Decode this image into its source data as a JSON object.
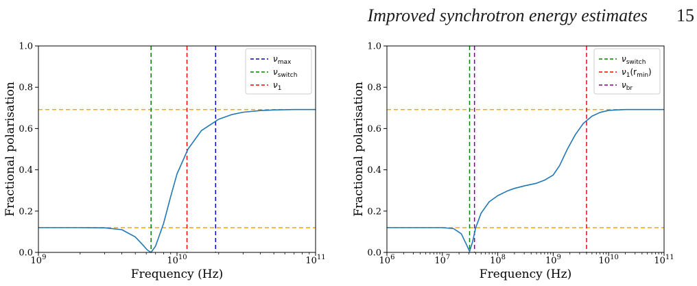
{
  "header": {
    "title": "Improved synchrotron energy estimates",
    "page_number": "15"
  },
  "colors": {
    "curve": "#1f77b4",
    "orange": "#ffa500",
    "green": "#008000",
    "red": "#ff0000",
    "blue": "#0000cc",
    "purple": "#800080"
  },
  "chart_data": [
    {
      "type": "line",
      "xscale": "log",
      "xlim": [
        1000000000.0,
        100000000000.0
      ],
      "ylim": [
        0.0,
        1.0
      ],
      "xlabel": "Frequency (Hz)",
      "ylabel": "Fractional polarisation",
      "x_major_ticks": [
        {
          "value": 1000000000.0,
          "base": "10",
          "exp": "9"
        },
        {
          "value": 10000000000.0,
          "base": "10",
          "exp": "10"
        },
        {
          "value": 100000000000.0,
          "base": "10",
          "exp": "11"
        }
      ],
      "y_ticks": [
        {
          "value": 0.0,
          "label": "0.0"
        },
        {
          "value": 0.2,
          "label": "0.2"
        },
        {
          "value": 0.4,
          "label": "0.4"
        },
        {
          "value": 0.6,
          "label": "0.6"
        },
        {
          "value": 0.8,
          "label": "0.8"
        },
        {
          "value": 1.0,
          "label": "1.0"
        }
      ],
      "curve": {
        "x": [
          1000000000.0,
          2000000000.0,
          3000000000.0,
          4000000000.0,
          5000000000.0,
          5600000000.0,
          6100000000.0,
          6500000000.0,
          7000000000.0,
          8000000000.0,
          9000000000.0,
          10000000000.0,
          12000000000.0,
          15000000000.0,
          20000000000.0,
          25000000000.0,
          30000000000.0,
          40000000000.0,
          50000000000.0,
          70000000000.0,
          100000000000.0
        ],
        "y": [
          0.12,
          0.12,
          0.119,
          0.11,
          0.075,
          0.04,
          0.012,
          0.0,
          0.03,
          0.14,
          0.27,
          0.38,
          0.5,
          0.59,
          0.645,
          0.668,
          0.679,
          0.687,
          0.69,
          0.692,
          0.692
        ]
      },
      "hlines": [
        {
          "y": 0.692,
          "color": "#ffa500"
        },
        {
          "y": 0.12,
          "color": "#ffa500"
        }
      ],
      "vlines": [
        {
          "x": 19000000000.0,
          "color": "#0000cc",
          "legend_base": "ν",
          "legend_sub": "max"
        },
        {
          "x": 6500000000.0,
          "color": "#008000",
          "legend_base": "ν",
          "legend_sub": "switch"
        },
        {
          "x": 11800000000.0,
          "color": "#ff0000",
          "legend_base": "ν",
          "legend_sub": "1"
        }
      ],
      "legend_position": "top-right"
    },
    {
      "type": "line",
      "xscale": "log",
      "xlim": [
        1000000.0,
        100000000000.0
      ],
      "ylim": [
        0.0,
        1.0
      ],
      "xlabel": "Frequency (Hz)",
      "ylabel": "Fractional polarisation",
      "x_major_ticks": [
        {
          "value": 1000000.0,
          "base": "10",
          "exp": "6"
        },
        {
          "value": 10000000.0,
          "base": "10",
          "exp": "7"
        },
        {
          "value": 100000000.0,
          "base": "10",
          "exp": "8"
        },
        {
          "value": 1000000000.0,
          "base": "10",
          "exp": "9"
        },
        {
          "value": 10000000000.0,
          "base": "10",
          "exp": "10"
        },
        {
          "value": 100000000000.0,
          "base": "10",
          "exp": "11"
        }
      ],
      "y_ticks": [
        {
          "value": 0.0,
          "label": "0.0"
        },
        {
          "value": 0.2,
          "label": "0.2"
        },
        {
          "value": 0.4,
          "label": "0.4"
        },
        {
          "value": 0.6,
          "label": "0.6"
        },
        {
          "value": 0.8,
          "label": "0.8"
        },
        {
          "value": 1.0,
          "label": "1.0"
        }
      ],
      "curve": {
        "x": [
          1000000.0,
          5000000.0,
          10000000.0,
          16000000.0,
          22000000.0,
          27000000.0,
          31000000.0,
          35000000.0,
          40000000.0,
          50000000.0,
          70000000.0,
          100000000.0,
          150000000.0,
          200000000.0,
          300000000.0,
          500000000.0,
          700000000.0,
          1000000000.0,
          1300000000.0,
          1800000000.0,
          2500000000.0,
          3500000000.0,
          5000000000.0,
          7000000000.0,
          10000000000.0,
          20000000000.0,
          100000000000.0
        ],
        "y": [
          0.12,
          0.12,
          0.12,
          0.115,
          0.09,
          0.04,
          0.005,
          0.05,
          0.12,
          0.19,
          0.245,
          0.275,
          0.298,
          0.31,
          0.322,
          0.335,
          0.35,
          0.375,
          0.42,
          0.5,
          0.57,
          0.625,
          0.66,
          0.678,
          0.688,
          0.692,
          0.692
        ]
      },
      "hlines": [
        {
          "y": 0.692,
          "color": "#ffa500"
        },
        {
          "y": 0.12,
          "color": "#ffa500"
        }
      ],
      "vlines": [
        {
          "x": 31000000.0,
          "color": "#008000",
          "legend_base": "ν",
          "legend_sub": "switch"
        },
        {
          "x": 4000000000.0,
          "color": "#ff0000",
          "legend_base": "ν",
          "legend_sub": "1",
          "legend_tail_pre": "(r",
          "legend_tail_sub": "min",
          "legend_tail_post": ")"
        },
        {
          "x": 38000000.0,
          "color": "#800080",
          "legend_base": "ν",
          "legend_sub": "br"
        }
      ],
      "legend_position": "top-right"
    }
  ]
}
